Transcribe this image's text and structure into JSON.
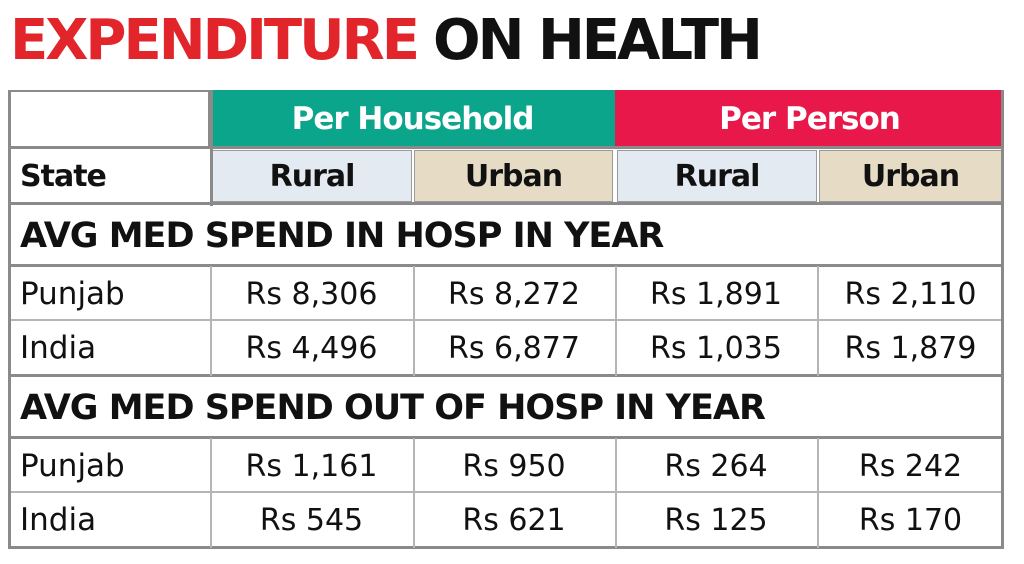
{
  "title": {
    "part1": "EXPENDITURE",
    "part2": "ON HEALTH"
  },
  "colors": {
    "title_red": "#e2242b",
    "per_household": "#0aa58a",
    "per_person": "#e8194a",
    "rural_bg": "#e3eaf2",
    "urban_bg": "#e6dcc5"
  },
  "chart_data": {
    "type": "table",
    "header": {
      "state_label": "State",
      "groups": [
        "Per Household",
        "Per Person"
      ],
      "subcolumns": [
        "Rural",
        "Urban",
        "Rural",
        "Urban"
      ]
    },
    "sections": [
      {
        "title": "AVG MED SPEND IN HOSP IN YEAR",
        "rows": [
          {
            "state": "Punjab",
            "values": [
              "Rs 8,306",
              "Rs 8,272",
              "Rs 1,891",
              "Rs 2,110"
            ]
          },
          {
            "state": "India",
            "values": [
              "Rs 4,496",
              "Rs 6,877",
              "Rs 1,035",
              "Rs 1,879"
            ]
          }
        ]
      },
      {
        "title": "AVG MED SPEND OUT OF HOSP IN YEAR",
        "rows": [
          {
            "state": "Punjab",
            "values": [
              "Rs 1,161",
              "Rs 950",
              "Rs 264",
              "Rs 242"
            ]
          },
          {
            "state": "India",
            "values": [
              "Rs 545",
              "Rs 621",
              "Rs 125",
              "Rs 170"
            ]
          }
        ]
      }
    ]
  }
}
